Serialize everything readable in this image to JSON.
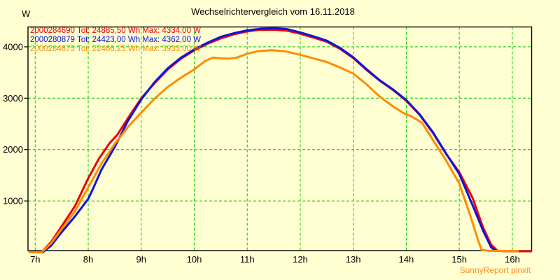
{
  "header": {
    "title": "Wechselrichtervergleich vom 16.11.2018"
  },
  "y_axis": {
    "unit": "W",
    "ticks": [
      1000,
      2000,
      3000,
      4000
    ]
  },
  "x_axis": {
    "ticks": [
      {
        "hour": 7,
        "label": "7h"
      },
      {
        "hour": 8,
        "label": "8h"
      },
      {
        "hour": 9,
        "label": "9h"
      },
      {
        "hour": 10,
        "label": "10h"
      },
      {
        "hour": 11,
        "label": "11h"
      },
      {
        "hour": 12,
        "label": "12h"
      },
      {
        "hour": 13,
        "label": "13h"
      },
      {
        "hour": 14,
        "label": "14h"
      },
      {
        "hour": 15,
        "label": "15h"
      },
      {
        "hour": 16,
        "label": "16h"
      }
    ]
  },
  "legend": [
    {
      "device_id": "2000284690",
      "total": "24885,50 Wh",
      "max": "4334,00 W",
      "label": "2000284690 Tot: 24885,50 Wh Max: 4334,00 W",
      "color": "#EE0000"
    },
    {
      "device_id": "2000280879",
      "total": "24423,00 Wh",
      "max": "4362,00 W",
      "label": "2000280879 Tot: 24423,00 Wh Max: 4362,00 W",
      "color": "#1212DF"
    },
    {
      "device_id": "2000284675",
      "total": "22466,25 Wh",
      "max": "3933,00 W",
      "label": "2000284675 Tot: 22466,25 Wh Max: 3933,00 W",
      "color": "#FF8C00"
    }
  ],
  "footer": {
    "watermark": "SunnyReport pinxit"
  },
  "colors": {
    "background": "#FFFFD2",
    "grid": "#00CC00",
    "axis": "#000000",
    "series_red": "#EE0000",
    "series_blue": "#1212DF",
    "series_orange": "#FF8C00",
    "watermark": "#FF9020"
  },
  "chart_data": {
    "type": "line",
    "title": "Wechselrichtervergleich vom 16.11.2018",
    "xlabel": "",
    "ylabel": "W",
    "x_unit": "hour of day",
    "y_unit": "W",
    "x_range": [
      6.87,
      16.38
    ],
    "y_range": [
      0,
      4420
    ],
    "grid": "dashed-green",
    "legend_position": "top-left",
    "y_ticks": [
      1000,
      2000,
      3000,
      4000
    ],
    "x_tick_hours": [
      7,
      8,
      9,
      10,
      11,
      12,
      13,
      14,
      15,
      16
    ],
    "series": [
      {
        "name": "2000284690",
        "total_wh": "24885,50",
        "max_w": "4334,00",
        "color": "#EE0000",
        "points": [
          [
            6.87,
            0
          ],
          [
            7.12,
            0
          ],
          [
            7.3,
            200
          ],
          [
            7.5,
            510
          ],
          [
            7.75,
            900
          ],
          [
            8.0,
            1440
          ],
          [
            8.2,
            1820
          ],
          [
            8.4,
            2120
          ],
          [
            8.55,
            2290
          ],
          [
            8.75,
            2610
          ],
          [
            9.0,
            3000
          ],
          [
            9.25,
            3290
          ],
          [
            9.5,
            3560
          ],
          [
            9.75,
            3770
          ],
          [
            10.0,
            3930
          ],
          [
            10.25,
            4060
          ],
          [
            10.5,
            4165
          ],
          [
            10.75,
            4245
          ],
          [
            11.0,
            4300
          ],
          [
            11.2,
            4328
          ],
          [
            11.5,
            4334
          ],
          [
            11.75,
            4315
          ],
          [
            12.0,
            4255
          ],
          [
            12.25,
            4180
          ],
          [
            12.5,
            4100
          ],
          [
            12.75,
            3960
          ],
          [
            13.0,
            3780
          ],
          [
            13.25,
            3550
          ],
          [
            13.5,
            3340
          ],
          [
            13.75,
            3160
          ],
          [
            14.0,
            2950
          ],
          [
            14.25,
            2680
          ],
          [
            14.5,
            2330
          ],
          [
            14.75,
            1920
          ],
          [
            15.0,
            1560
          ],
          [
            15.25,
            1060
          ],
          [
            15.45,
            480
          ],
          [
            15.6,
            150
          ],
          [
            15.72,
            30
          ],
          [
            15.85,
            22
          ],
          [
            16.37,
            20
          ]
        ]
      },
      {
        "name": "2000280879",
        "total_wh": "24423,00",
        "max_w": "4362,00",
        "color": "#1212DF",
        "points": [
          [
            6.87,
            0
          ],
          [
            7.14,
            0
          ],
          [
            7.3,
            130
          ],
          [
            7.5,
            395
          ],
          [
            7.75,
            700
          ],
          [
            8.0,
            1040
          ],
          [
            8.1,
            1260
          ],
          [
            8.25,
            1610
          ],
          [
            8.5,
            2050
          ],
          [
            8.75,
            2560
          ],
          [
            9.0,
            2975
          ],
          [
            9.25,
            3310
          ],
          [
            9.5,
            3580
          ],
          [
            9.75,
            3790
          ],
          [
            10.0,
            3950
          ],
          [
            10.25,
            4080
          ],
          [
            10.5,
            4195
          ],
          [
            10.75,
            4265
          ],
          [
            11.0,
            4320
          ],
          [
            11.25,
            4352
          ],
          [
            11.5,
            4362
          ],
          [
            11.75,
            4345
          ],
          [
            12.0,
            4280
          ],
          [
            12.25,
            4205
          ],
          [
            12.5,
            4120
          ],
          [
            12.75,
            3980
          ],
          [
            13.0,
            3795
          ],
          [
            13.25,
            3565
          ],
          [
            13.5,
            3350
          ],
          [
            13.75,
            3170
          ],
          [
            14.0,
            2965
          ],
          [
            14.25,
            2690
          ],
          [
            14.5,
            2340
          ],
          [
            14.75,
            1925
          ],
          [
            15.0,
            1525
          ],
          [
            15.25,
            920
          ],
          [
            15.45,
            420
          ],
          [
            15.6,
            100
          ],
          [
            15.7,
            15
          ]
        ]
      },
      {
        "name": "2000284675",
        "total_wh": "22466,25",
        "max_w": "3933,00",
        "color": "#FF8C00",
        "points": [
          [
            6.87,
            0
          ],
          [
            7.12,
            0
          ],
          [
            7.3,
            175
          ],
          [
            7.5,
            455
          ],
          [
            7.75,
            800
          ],
          [
            8.0,
            1260
          ],
          [
            8.25,
            1730
          ],
          [
            8.5,
            2110
          ],
          [
            8.75,
            2440
          ],
          [
            9.0,
            2720
          ],
          [
            9.25,
            2990
          ],
          [
            9.5,
            3220
          ],
          [
            9.75,
            3400
          ],
          [
            10.0,
            3560
          ],
          [
            10.2,
            3720
          ],
          [
            10.35,
            3790
          ],
          [
            10.5,
            3775
          ],
          [
            10.65,
            3770
          ],
          [
            10.8,
            3790
          ],
          [
            11.0,
            3865
          ],
          [
            11.2,
            3915
          ],
          [
            11.45,
            3933
          ],
          [
            11.7,
            3915
          ],
          [
            12.0,
            3845
          ],
          [
            12.25,
            3775
          ],
          [
            12.5,
            3705
          ],
          [
            12.75,
            3600
          ],
          [
            13.0,
            3480
          ],
          [
            13.25,
            3270
          ],
          [
            13.5,
            3030
          ],
          [
            13.75,
            2840
          ],
          [
            13.95,
            2710
          ],
          [
            14.1,
            2645
          ],
          [
            14.3,
            2520
          ],
          [
            14.5,
            2190
          ],
          [
            14.75,
            1790
          ],
          [
            15.0,
            1340
          ],
          [
            15.2,
            740
          ],
          [
            15.35,
            250
          ],
          [
            15.42,
            50
          ],
          [
            15.55,
            28
          ],
          [
            16.12,
            25
          ]
        ]
      }
    ]
  }
}
